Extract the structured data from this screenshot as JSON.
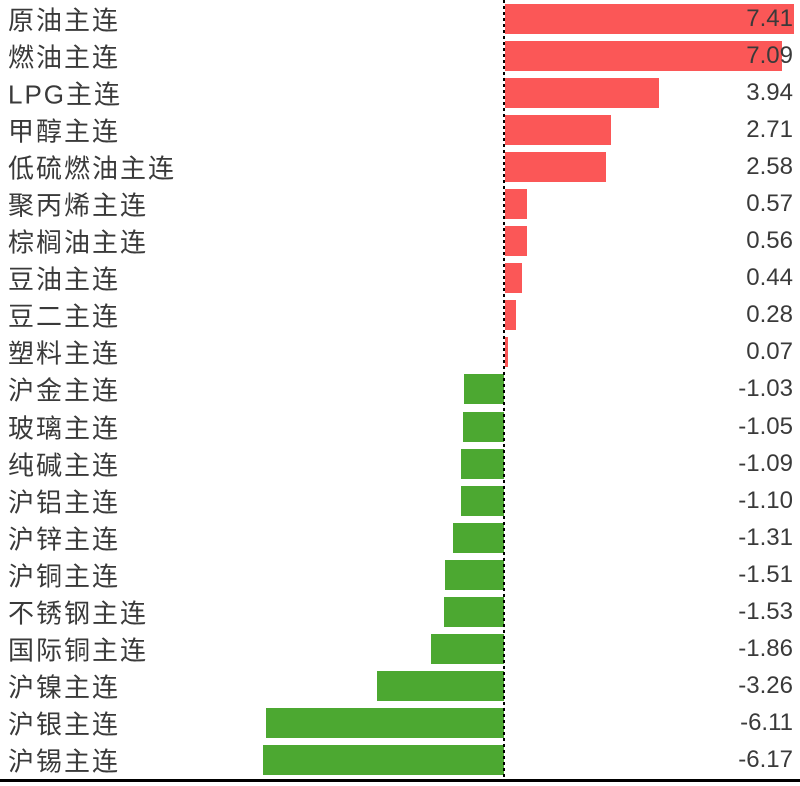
{
  "page": {
    "background": "#FFFFFF"
  },
  "chart_data": {
    "type": "bar",
    "orientation": "horizontal",
    "title": "",
    "xlabel": "",
    "ylabel": "",
    "grid": false,
    "legend": "none",
    "categories": [
      "原油主连",
      "燃油主连",
      "LPG主连",
      "甲醇主连",
      "低硫燃油主连",
      "聚丙烯主连",
      "棕榈油主连",
      "豆油主连",
      "豆二主连",
      "塑料主连",
      "沪金主连",
      "玻璃主连",
      "纯碱主连",
      "沪铝主连",
      "沪锌主连",
      "沪铜主连",
      "不锈钢主连",
      "国际铜主连",
      "沪镍主连",
      "沪银主连",
      "沪锡主连"
    ],
    "values": [
      7.41,
      7.09,
      3.94,
      2.71,
      2.58,
      0.57,
      0.56,
      0.44,
      0.28,
      0.07,
      -1.03,
      -1.05,
      -1.09,
      -1.1,
      -1.31,
      -1.51,
      -1.53,
      -1.86,
      -3.26,
      -6.11,
      -6.17
    ],
    "value_labels": [
      "7.41",
      "7.09",
      "3.94",
      "2.71",
      "2.58",
      "0.57",
      "0.56",
      "0.44",
      "0.28",
      "0.07",
      "-1.03",
      "-1.05",
      "-1.09",
      "-1.10",
      "-1.31",
      "-1.51",
      "-1.53",
      "-1.86",
      "-3.26",
      "-6.11",
      "-6.17"
    ],
    "xlim": [
      -7.6,
      7.6
    ],
    "positive_color": "#FB5757",
    "negative_color": "#4CA831",
    "label_color": "#3A3A3A",
    "value_color": "#3A3A3A",
    "zero_line": {
      "style": "dotted",
      "color": "#000000"
    },
    "baseline": {
      "style": "solid",
      "color": "#000000"
    }
  }
}
